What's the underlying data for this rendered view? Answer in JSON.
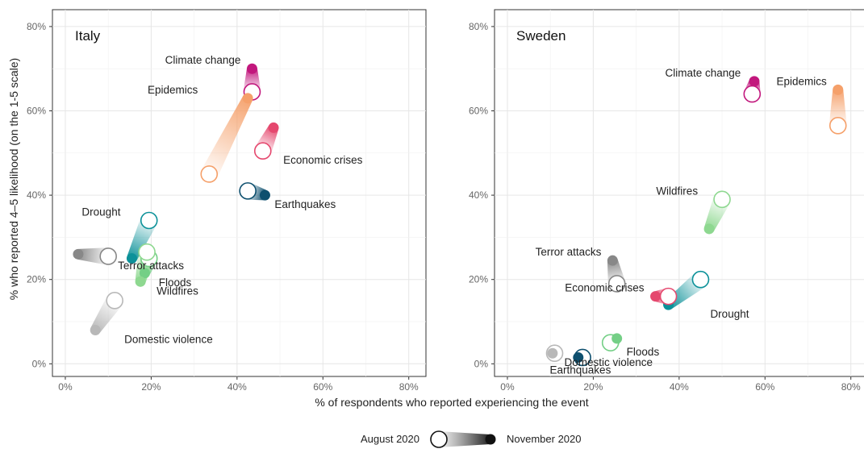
{
  "chart_data": [
    {
      "type": "scatter",
      "title": "Italy",
      "x_range": [
        -3,
        84
      ],
      "y_range": [
        -3,
        84
      ],
      "x_ticks": [
        "0%",
        "20%",
        "40%",
        "60%",
        "80%"
      ],
      "y_ticks": [
        "0%",
        "20%",
        "40%",
        "60%",
        "80%"
      ],
      "x_tick_values": [
        0,
        20,
        40,
        60,
        80
      ],
      "y_tick_values": [
        0,
        20,
        40,
        60,
        80
      ],
      "grid": true,
      "series": [
        {
          "name": "Climate change",
          "color": "#c2187d",
          "aug": [
            43.5,
            64.5
          ],
          "nov": [
            43.5,
            70
          ],
          "label_anchor": "end"
        },
        {
          "name": "Epidemics",
          "color": "#f5a06a",
          "aug": [
            33.5,
            45
          ],
          "nov": [
            42.5,
            63
          ],
          "label_anchor": "end"
        },
        {
          "name": "Economic crises",
          "color": "#e5486e",
          "aug": [
            46,
            50.5
          ],
          "nov": [
            48.5,
            56
          ],
          "label_anchor": "start"
        },
        {
          "name": "Earthquakes",
          "color": "#0d4f6e",
          "aug": [
            42.5,
            41
          ],
          "nov": [
            46.5,
            40
          ],
          "label_anchor": "start"
        },
        {
          "name": "Terror attacks",
          "color": "#888888",
          "aug": [
            10,
            25.5
          ],
          "nov": [
            3,
            26
          ],
          "label_anchor": "start"
        },
        {
          "name": "Drought",
          "color": "#0c9199",
          "aug": [
            19.5,
            34
          ],
          "nov": [
            15.5,
            25
          ],
          "label_anchor": "end"
        },
        {
          "name": "Floods",
          "color": "#74cf86",
          "aug": [
            19.5,
            25
          ],
          "nov": [
            18.5,
            21.5
          ],
          "label_anchor": "start"
        },
        {
          "name": "Wildfires",
          "color": "#8ed890",
          "aug": [
            19,
            26.5
          ],
          "nov": [
            17.5,
            19.5
          ],
          "label_anchor": "start"
        },
        {
          "name": "Domestic violence",
          "color": "#b8b8b8",
          "aug": [
            11.5,
            15
          ],
          "nov": [
            7,
            8
          ],
          "label_anchor": "start"
        }
      ]
    },
    {
      "type": "scatter",
      "title": "Sweden",
      "x_range": [
        -3,
        84
      ],
      "y_range": [
        -3,
        84
      ],
      "x_ticks": [
        "0%",
        "20%",
        "40%",
        "60%",
        "80%"
      ],
      "y_ticks": [
        "0%",
        "20%",
        "40%",
        "60%",
        "80%"
      ],
      "x_tick_values": [
        0,
        20,
        40,
        60,
        80
      ],
      "y_tick_values": [
        0,
        20,
        40,
        60,
        80
      ],
      "grid": true,
      "series": [
        {
          "name": "Climate change",
          "color": "#c2187d",
          "aug": [
            57,
            64
          ],
          "nov": [
            57.5,
            67
          ],
          "label_anchor": "end"
        },
        {
          "name": "Epidemics",
          "color": "#f5a06a",
          "aug": [
            77,
            56.5
          ],
          "nov": [
            77,
            65
          ],
          "label_anchor": "end"
        },
        {
          "name": "Wildfires",
          "color": "#8ed890",
          "aug": [
            50,
            39
          ],
          "nov": [
            47,
            32
          ],
          "label_anchor": "end"
        },
        {
          "name": "Terror attacks",
          "color": "#888888",
          "aug": [
            25.5,
            19
          ],
          "nov": [
            24.5,
            24.5
          ],
          "label_anchor": "end"
        },
        {
          "name": "Drought",
          "color": "#0c9199",
          "aug": [
            45,
            20
          ],
          "nov": [
            37.5,
            14
          ],
          "label_anchor": "start"
        },
        {
          "name": "Economic crises",
          "color": "#e5486e",
          "aug": [
            37.5,
            16
          ],
          "nov": [
            34.5,
            16
          ],
          "label_anchor": "end"
        },
        {
          "name": "Floods",
          "color": "#74cf86",
          "aug": [
            24,
            5
          ],
          "nov": [
            25.5,
            6
          ],
          "label_anchor": "start"
        },
        {
          "name": "Domestic violence",
          "color": "#b8b8b8",
          "aug": [
            11,
            2.5
          ],
          "nov": [
            10.5,
            2.5
          ],
          "label_anchor": "start"
        },
        {
          "name": "Earthquakes",
          "color": "#0d4f6e",
          "aug": [
            17.5,
            1.5
          ],
          "nov": [
            16.5,
            1.5
          ],
          "label_anchor": "middle"
        }
      ]
    }
  ],
  "axes": {
    "xlabel": "% of respondents who reported experiencing the event",
    "ylabel": "% who reported 4–5 likelihood (on the 1-5 scale)"
  },
  "legend": {
    "start_label": "August 2020",
    "end_label": "November 2020",
    "position": "bottom-center"
  }
}
